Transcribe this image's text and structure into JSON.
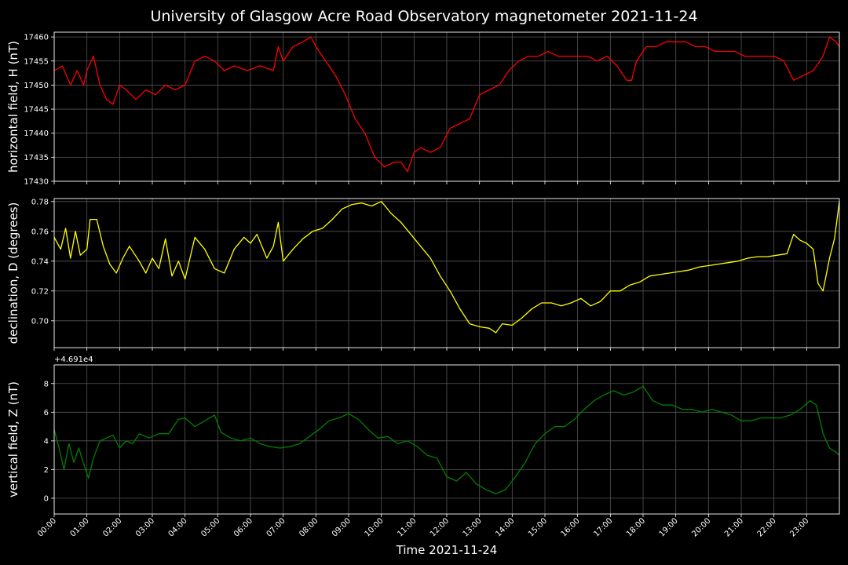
{
  "title": "University of Glasgow Acre Road Observatory magnetometer 2021-11-24",
  "chart_data": [
    {
      "type": "line",
      "ylabel": "horizontal field, H (nT)",
      "color": "#ff0000",
      "ylim": [
        17430,
        17461
      ],
      "yticks": [
        17430,
        17435,
        17440,
        17445,
        17450,
        17455,
        17460
      ],
      "series": [
        {
          "x": [
            0,
            0.25,
            0.5,
            0.7,
            0.9,
            1.0,
            1.2,
            1.4,
            1.6,
            1.8,
            2.0,
            2.2,
            2.5,
            2.8,
            3.1,
            3.4,
            3.7,
            4.0,
            4.3,
            4.6,
            4.9,
            5.2,
            5.5,
            5.9,
            6.3,
            6.7,
            6.85,
            7.0,
            7.3,
            7.6,
            7.85,
            8.0,
            8.3,
            8.6,
            8.9,
            9.2,
            9.5,
            9.8,
            10.1,
            10.4,
            10.6,
            10.8,
            11.0,
            11.2,
            11.5,
            11.8,
            12.1,
            12.4,
            12.7,
            13.0,
            13.3,
            13.6,
            13.9,
            14.2,
            14.5,
            14.8,
            15.1,
            15.4,
            15.7,
            16.0,
            16.3,
            16.6,
            16.9,
            17.2,
            17.5,
            17.65,
            17.8,
            18.1,
            18.4,
            18.7,
            19.0,
            19.3,
            19.6,
            19.9,
            20.2,
            20.5,
            20.8,
            21.1,
            21.4,
            21.7,
            22.0,
            22.3,
            22.6,
            22.9,
            23.2,
            23.5,
            23.7,
            23.9,
            24.0
          ],
          "y": [
            17453,
            17454,
            17450,
            17453,
            17450,
            17453,
            17456,
            17450,
            17447,
            17446,
            17450,
            17449,
            17447,
            17449,
            17448,
            17450,
            17449,
            17450,
            17455,
            17456,
            17455,
            17453,
            17454,
            17453,
            17454,
            17453,
            17458,
            17455,
            17458,
            17459,
            17460,
            17458,
            17455,
            17452,
            17448,
            17443,
            17440,
            17435,
            17433,
            17434,
            17434,
            17432,
            17436,
            17437,
            17436,
            17437,
            17441,
            17442,
            17443,
            17448,
            17449,
            17450,
            17453,
            17455,
            17456,
            17456,
            17457,
            17456,
            17456,
            17456,
            17456,
            17455,
            17456,
            17454,
            17451,
            17451,
            17455,
            17458,
            17458,
            17459,
            17459,
            17459,
            17458,
            17458,
            17457,
            17457,
            17457,
            17456,
            17456,
            17456,
            17456,
            17455,
            17451,
            17452,
            17453,
            17456,
            17460,
            17459,
            17458
          ]
        }
      ]
    },
    {
      "type": "line",
      "ylabel": "declination, D (degrees)",
      "color": "#ffff00",
      "ylim": [
        0.682,
        0.782
      ],
      "yticks": [
        0.7,
        0.72,
        0.74,
        0.76,
        0.78
      ],
      "series": [
        {
          "x": [
            0,
            0.2,
            0.35,
            0.5,
            0.65,
            0.8,
            1.0,
            1.1,
            1.3,
            1.5,
            1.7,
            1.9,
            2.1,
            2.3,
            2.6,
            2.8,
            3.0,
            3.2,
            3.4,
            3.6,
            3.8,
            4.0,
            4.3,
            4.6,
            4.9,
            5.2,
            5.5,
            5.8,
            6.0,
            6.2,
            6.5,
            6.7,
            6.85,
            7.0,
            7.3,
            7.6,
            7.9,
            8.2,
            8.5,
            8.8,
            9.1,
            9.4,
            9.7,
            10.0,
            10.3,
            10.6,
            10.9,
            11.2,
            11.5,
            11.8,
            12.1,
            12.4,
            12.7,
            13.0,
            13.3,
            13.5,
            13.7,
            14.0,
            14.3,
            14.6,
            14.9,
            15.2,
            15.5,
            15.8,
            16.1,
            16.4,
            16.7,
            17.0,
            17.3,
            17.6,
            17.9,
            18.2,
            18.5,
            18.8,
            19.1,
            19.4,
            19.7,
            20.0,
            20.3,
            20.6,
            20.9,
            21.2,
            21.5,
            21.8,
            22.1,
            22.4,
            22.6,
            22.8,
            23.0,
            23.2,
            23.35,
            23.5,
            23.7,
            23.85,
            24.0
          ],
          "y": [
            0.756,
            0.748,
            0.762,
            0.742,
            0.76,
            0.744,
            0.748,
            0.768,
            0.768,
            0.75,
            0.738,
            0.732,
            0.742,
            0.75,
            0.74,
            0.732,
            0.742,
            0.735,
            0.755,
            0.73,
            0.74,
            0.728,
            0.756,
            0.748,
            0.735,
            0.732,
            0.748,
            0.756,
            0.752,
            0.758,
            0.742,
            0.75,
            0.766,
            0.74,
            0.748,
            0.755,
            0.76,
            0.762,
            0.768,
            0.775,
            0.778,
            0.779,
            0.777,
            0.78,
            0.772,
            0.766,
            0.758,
            0.75,
            0.742,
            0.73,
            0.72,
            0.708,
            0.698,
            0.696,
            0.695,
            0.692,
            0.698,
            0.697,
            0.702,
            0.708,
            0.712,
            0.712,
            0.71,
            0.712,
            0.715,
            0.71,
            0.713,
            0.72,
            0.72,
            0.724,
            0.726,
            0.73,
            0.731,
            0.732,
            0.733,
            0.734,
            0.736,
            0.737,
            0.738,
            0.739,
            0.74,
            0.742,
            0.743,
            0.743,
            0.744,
            0.745,
            0.758,
            0.754,
            0.752,
            0.748,
            0.725,
            0.72,
            0.742,
            0.755,
            0.78
          ]
        }
      ]
    },
    {
      "type": "line",
      "ylabel": "vertical field, Z (nT)",
      "color": "#008000",
      "offset_text": "+4.691e4",
      "ylim": [
        -1.1,
        9.3
      ],
      "yticks": [
        0,
        2,
        4,
        6,
        8
      ],
      "xlabel": "Time 2021-11-24",
      "xticks": [
        "00:00",
        "01:00",
        "02:00",
        "03:00",
        "04:00",
        "05:00",
        "06:00",
        "07:00",
        "08:00",
        "09:00",
        "10:00",
        "11:00",
        "12:00",
        "13:00",
        "14:00",
        "15:00",
        "16:00",
        "17:00",
        "18:00",
        "19:00",
        "20:00",
        "21:00",
        "22:00",
        "23:00"
      ],
      "series": [
        {
          "x": [
            0,
            0.15,
            0.3,
            0.45,
            0.6,
            0.75,
            0.9,
            1.05,
            1.2,
            1.4,
            1.6,
            1.8,
            2.0,
            2.2,
            2.4,
            2.6,
            2.9,
            3.2,
            3.5,
            3.8,
            4.0,
            4.3,
            4.6,
            4.9,
            5.1,
            5.4,
            5.7,
            6.0,
            6.3,
            6.6,
            6.9,
            7.2,
            7.5,
            7.8,
            8.1,
            8.4,
            8.7,
            9.0,
            9.3,
            9.6,
            9.9,
            10.2,
            10.5,
            10.8,
            11.1,
            11.4,
            11.7,
            12.0,
            12.3,
            12.6,
            12.9,
            13.2,
            13.5,
            13.8,
            14.1,
            14.4,
            14.7,
            15.0,
            15.3,
            15.6,
            15.9,
            16.2,
            16.5,
            16.8,
            17.1,
            17.4,
            17.7,
            18.0,
            18.3,
            18.6,
            18.9,
            19.2,
            19.5,
            19.8,
            20.1,
            20.4,
            20.7,
            21.0,
            21.3,
            21.6,
            21.9,
            22.2,
            22.5,
            22.8,
            23.1,
            23.3,
            23.5,
            23.7,
            23.9,
            24.0
          ],
          "y": [
            4.8,
            3.5,
            2.0,
            3.8,
            2.5,
            3.5,
            2.4,
            1.4,
            2.8,
            4.0,
            4.2,
            4.4,
            3.5,
            4.0,
            3.8,
            4.5,
            4.2,
            4.5,
            4.5,
            5.5,
            5.6,
            5.0,
            5.4,
            5.8,
            4.6,
            4.2,
            4.0,
            4.2,
            3.8,
            3.6,
            3.5,
            3.6,
            3.8,
            4.3,
            4.8,
            5.4,
            5.6,
            5.9,
            5.5,
            4.8,
            4.2,
            4.3,
            3.8,
            4.0,
            3.6,
            3.0,
            2.8,
            1.5,
            1.2,
            1.8,
            1.0,
            0.6,
            0.3,
            0.6,
            1.5,
            2.5,
            3.8,
            4.5,
            5.0,
            5.0,
            5.5,
            6.2,
            6.8,
            7.2,
            7.5,
            7.2,
            7.4,
            7.8,
            6.8,
            6.5,
            6.5,
            6.2,
            6.2,
            6.0,
            6.2,
            6.0,
            5.8,
            5.4,
            5.4,
            5.6,
            5.6,
            5.6,
            5.8,
            6.2,
            6.8,
            6.5,
            4.5,
            3.5,
            3.2,
            3.0
          ]
        }
      ]
    }
  ]
}
